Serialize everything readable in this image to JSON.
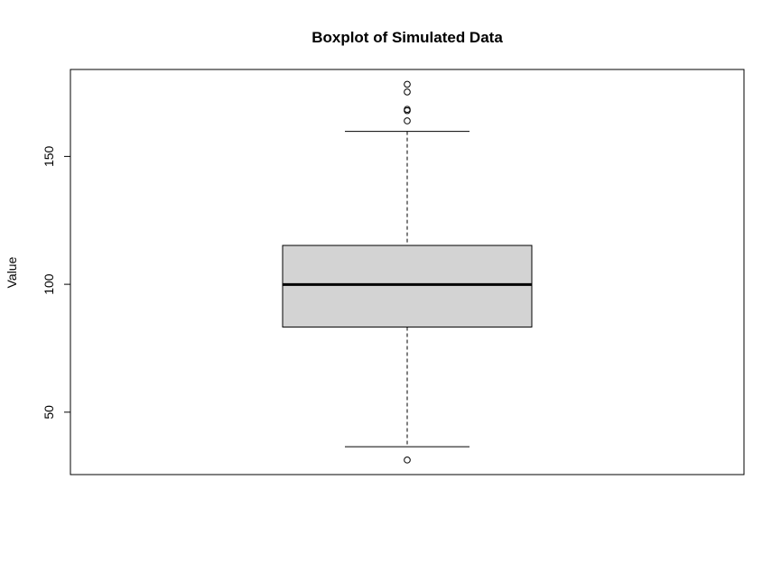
{
  "chart_data": {
    "type": "boxplot",
    "title": "Boxplot of Simulated Data",
    "xlabel": "",
    "ylabel": "Value",
    "ylim": [
      25.6,
      184.0
    ],
    "yticks": [
      50,
      100,
      150
    ],
    "grid": false,
    "legend": "none",
    "box": {
      "lower_whisker": 36.5,
      "q1": 83.3,
      "median": 99.9,
      "q3": 115.2,
      "upper_whisker": 159.8
    },
    "outliers": [
      31.3,
      163.9,
      167.9,
      168.4,
      175.2,
      178.2
    ],
    "colors": {
      "box_fill": "#d3d3d3",
      "stroke": "#000000"
    }
  }
}
